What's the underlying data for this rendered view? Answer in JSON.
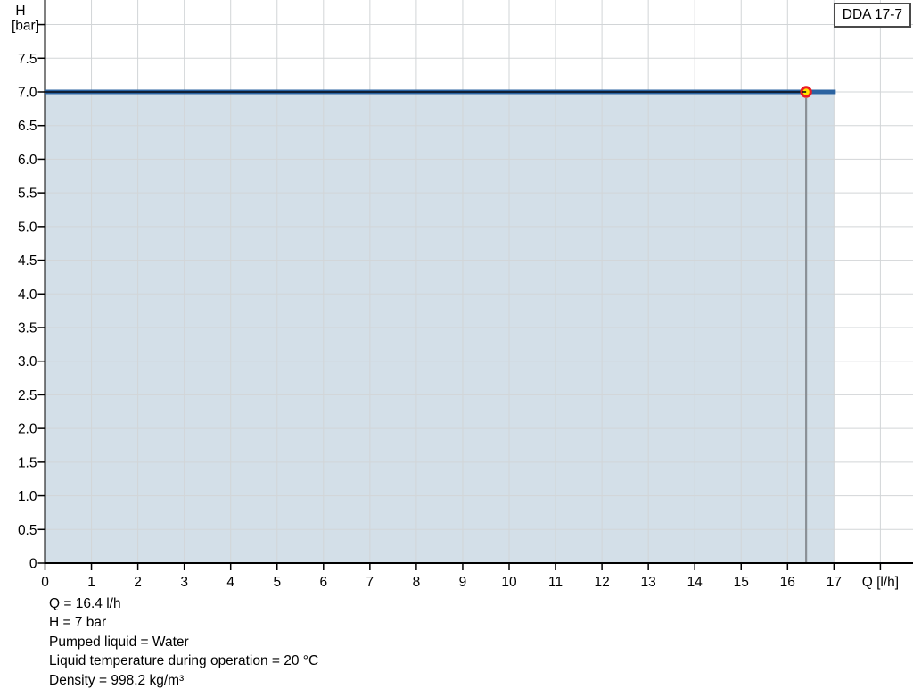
{
  "chart_data": {
    "type": "area",
    "title": "DDA 17-7",
    "xlabel": "Q [l/h]",
    "ylabel_name": "H",
    "ylabel_unit": "[bar]",
    "xlim": [
      0,
      18.7
    ],
    "ylim": [
      0,
      8.37
    ],
    "grid": true,
    "legend": "none",
    "x_grid_ticks": [
      0,
      1,
      2,
      3,
      4,
      5,
      6,
      7,
      8,
      9,
      10,
      11,
      12,
      13,
      14,
      15,
      16,
      17,
      18
    ],
    "x_tick_labels": [
      "0",
      "1",
      "2",
      "3",
      "4",
      "5",
      "6",
      "7",
      "8",
      "9",
      "10",
      "11",
      "12",
      "13",
      "14",
      "15",
      "16",
      "17",
      ""
    ],
    "y_grid_ticks": [
      0,
      0.5,
      1,
      1.5,
      2,
      2.5,
      3,
      3.5,
      4,
      4.5,
      5,
      5.5,
      6,
      6.5,
      7,
      7.5,
      8
    ],
    "y_tick_labels": [
      "0",
      "0.5",
      "1.0",
      "1.5",
      "2.0",
      "2.5",
      "3.0",
      "3.5",
      "4.0",
      "4.5",
      "5.0",
      "5.5",
      "6.0",
      "6.5",
      "7.0",
      "7.5",
      ""
    ],
    "series": [
      {
        "name": "pump-curve",
        "x": [
          0,
          17
        ],
        "y": [
          7,
          7
        ]
      }
    ],
    "area_under_curve": {
      "x": [
        0,
        17
      ],
      "y_top": 7
    },
    "operating_point": {
      "q": 16.4,
      "h": 7
    },
    "colors": {
      "curve": "#2b63a1",
      "curve_core": "#0d1726",
      "area": "#d3dfe8",
      "grid": "#d2d5d7",
      "axis": "#000000",
      "tick": "#000000",
      "marker_fill": "#ffe600",
      "marker_ring": "#ec1c24",
      "drop_line": "#8a9096"
    }
  },
  "footer": {
    "lines": [
      "Q = 16.4 l/h",
      "H = 7 bar",
      "Pumped liquid = Water",
      "Liquid temperature during operation = 20 °C",
      "Density = 998.2 kg/m³"
    ]
  }
}
